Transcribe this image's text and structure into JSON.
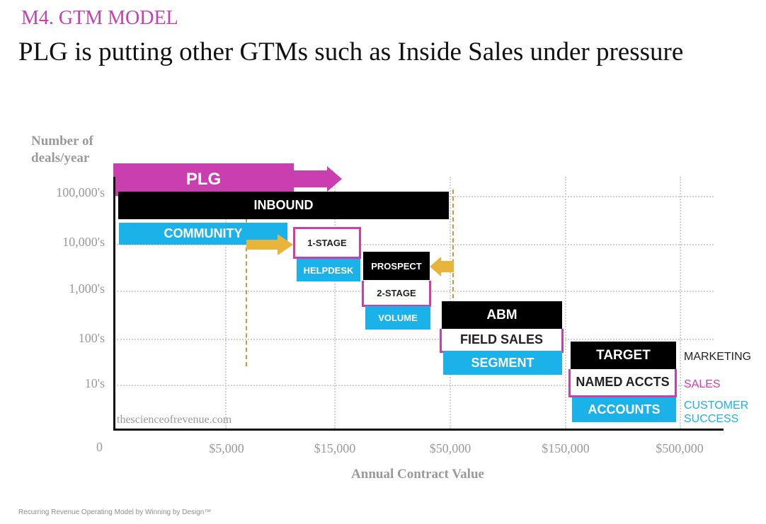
{
  "header": {
    "section": "M4. GTM MODEL",
    "title": "PLG is putting other GTMs such as Inside Sales under pressure"
  },
  "axes": {
    "y_title_line1": "Number of",
    "y_title_line2": "deals/year",
    "y_ticks": [
      "100,000's",
      "10,000's",
      "1,000's",
      "100's",
      "10's"
    ],
    "x_origin": "0",
    "x_ticks": [
      "$5,000",
      "$15,000",
      "$50,000",
      "$150,000",
      "$500,000"
    ],
    "x_title": "Annual Contract Value"
  },
  "boxes": {
    "plg": "PLG",
    "inbound": "INBOUND",
    "community": "COMMUNITY",
    "one_stage": "1-STAGE",
    "helpdesk": "HELPDESK",
    "prospect": "PROSPECT",
    "two_stage": "2-STAGE",
    "volume": "VOLUME",
    "abm": "ABM",
    "field_sales": "FIELD SALES",
    "segment": "SEGMENT",
    "target": "TARGET",
    "named_accts": "NAMED ACCTS",
    "accounts": "ACCOUNTS"
  },
  "side_labels": {
    "marketing": "MARKETING",
    "sales": "SALES",
    "customer_success_line1": "CUSTOMER",
    "customer_success_line2": "SUCCESS"
  },
  "watermark": "thescienceofrevenue.com",
  "footer": "Recurring Revenue Operating Model by  Winning by Design™",
  "colors": {
    "marketing": "#000000",
    "sales": "#c93fb0",
    "customer_success": "#1ab2e8",
    "arrow_gold": "#e8b53a",
    "axis_text": "#9a9a9a"
  }
}
